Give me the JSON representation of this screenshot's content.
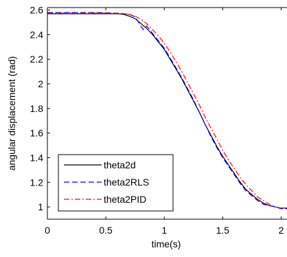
{
  "chart_data": {
    "type": "line",
    "title": "",
    "xlabel": "time(s)",
    "ylabel": "angular displacement (rad)",
    "xlim": [
      0,
      2.05
    ],
    "ylim": [
      0.9,
      2.62
    ],
    "xticks": [
      0,
      0.5,
      1,
      1.5,
      2
    ],
    "xtick_labels": [
      "0",
      "0.5",
      "1",
      "1.5",
      "2"
    ],
    "yticks": [
      1,
      1.2,
      1.4,
      1.6,
      1.8,
      2,
      2.2,
      2.4,
      2.6
    ],
    "ytick_labels": [
      "1",
      "1.2",
      "1.4",
      "1.6",
      "1.8",
      "2",
      "2.2",
      "2.4",
      "2.6"
    ],
    "grid": false,
    "legend_position": "bottom-left",
    "series": [
      {
        "name": "theta2d",
        "color": "#000000",
        "style": "solid",
        "x": [
          0,
          0.2,
          0.4,
          0.6,
          0.65,
          0.7,
          0.75,
          0.8,
          0.85,
          0.9,
          0.95,
          1.0,
          1.05,
          1.1,
          1.15,
          1.2,
          1.25,
          1.3,
          1.35,
          1.4,
          1.45,
          1.5,
          1.55,
          1.6,
          1.65,
          1.7,
          1.75,
          1.8,
          1.85,
          1.9,
          1.95,
          2.0,
          2.05
        ],
        "y": [
          2.57,
          2.57,
          2.57,
          2.57,
          2.565,
          2.55,
          2.53,
          2.49,
          2.45,
          2.4,
          2.34,
          2.28,
          2.2,
          2.12,
          2.04,
          1.95,
          1.86,
          1.77,
          1.67,
          1.58,
          1.49,
          1.41,
          1.34,
          1.27,
          1.2,
          1.14,
          1.1,
          1.06,
          1.03,
          1.01,
          1.0,
          0.99,
          0.99
        ]
      },
      {
        "name": "theta2RLS",
        "color": "#0000ff",
        "style": "dashed",
        "x": [
          0,
          0.2,
          0.4,
          0.6,
          0.65,
          0.7,
          0.75,
          0.78,
          0.8,
          0.82,
          0.85,
          0.9,
          0.95,
          1.0,
          1.05,
          1.1,
          1.15,
          1.2,
          1.25,
          1.3,
          1.35,
          1.4,
          1.45,
          1.5,
          1.55,
          1.6,
          1.65,
          1.7,
          1.75,
          1.8,
          1.85,
          1.9,
          1.95,
          2.0,
          2.05
        ],
        "y": [
          2.58,
          2.58,
          2.58,
          2.575,
          2.57,
          2.565,
          2.545,
          2.5,
          2.47,
          2.44,
          2.47,
          2.41,
          2.35,
          2.29,
          2.21,
          2.13,
          2.05,
          1.96,
          1.87,
          1.77,
          1.67,
          1.57,
          1.48,
          1.4,
          1.33,
          1.26,
          1.19,
          1.13,
          1.09,
          1.05,
          1.02,
          1.01,
          1.0,
          0.985,
          0.985
        ]
      },
      {
        "name": "theta2PID",
        "color": "#ff0000",
        "style": "dashdot",
        "x": [
          0,
          0.2,
          0.4,
          0.6,
          0.65,
          0.7,
          0.75,
          0.8,
          0.85,
          0.9,
          0.95,
          1.0,
          1.05,
          1.1,
          1.15,
          1.2,
          1.25,
          1.3,
          1.35,
          1.4,
          1.45,
          1.5,
          1.55,
          1.6,
          1.65,
          1.7,
          1.75,
          1.8,
          1.85,
          1.9,
          1.95,
          2.0,
          2.05
        ],
        "y": [
          2.575,
          2.575,
          2.575,
          2.575,
          2.57,
          2.565,
          2.55,
          2.525,
          2.49,
          2.44,
          2.39,
          2.33,
          2.26,
          2.18,
          2.1,
          2.01,
          1.92,
          1.83,
          1.73,
          1.64,
          1.55,
          1.46,
          1.38,
          1.31,
          1.24,
          1.18,
          1.13,
          1.08,
          1.05,
          1.02,
          1.0,
          0.99,
          0.99
        ]
      }
    ]
  }
}
